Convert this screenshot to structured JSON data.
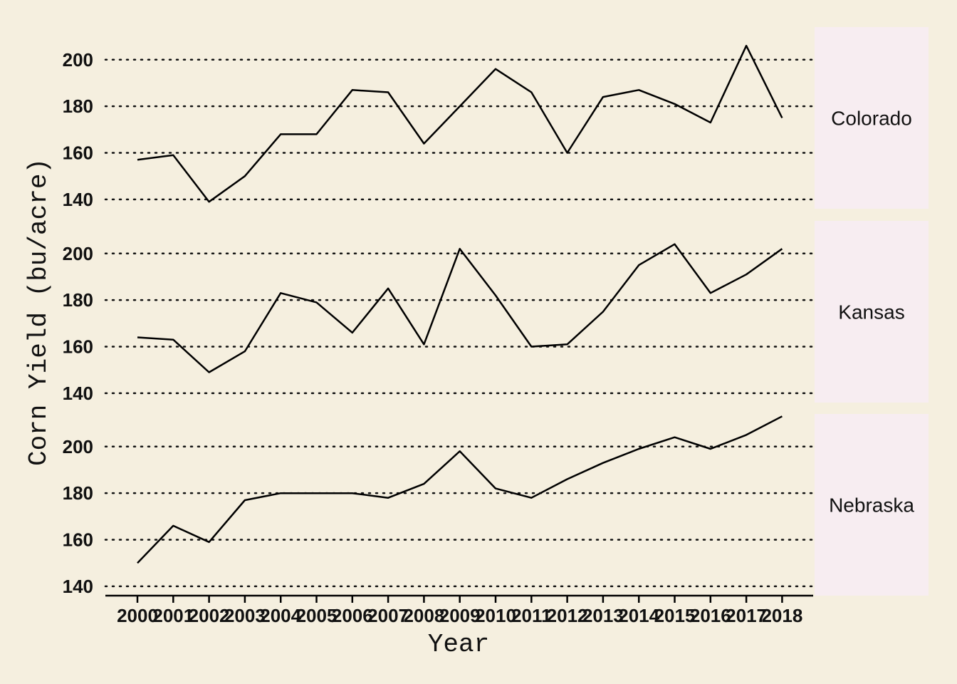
{
  "chart_data": {
    "type": "line",
    "xlabel": "Year",
    "ylabel": "Corn Yield (bu/acre)",
    "x": [
      "2000",
      "2001",
      "2002",
      "2003",
      "2004",
      "2005",
      "2006",
      "2007",
      "2008",
      "2009",
      "2010",
      "2011",
      "2012",
      "2013",
      "2014",
      "2015",
      "2016",
      "2017",
      "2018"
    ],
    "ylim": [
      136,
      214
    ],
    "yticks": [
      140,
      160,
      180,
      200
    ],
    "grid": "horizontal dotted",
    "facets": [
      {
        "name": "Colorado",
        "values": [
          157,
          159,
          139,
          150,
          168,
          168,
          187,
          186,
          164,
          180,
          196,
          186,
          160,
          184,
          187,
          181,
          173,
          206,
          175
        ]
      },
      {
        "name": "Kansas",
        "values": [
          164,
          163,
          149,
          158,
          183,
          179,
          166,
          185,
          161,
          202,
          182,
          160,
          161,
          175,
          195,
          204,
          183,
          191,
          202
        ]
      },
      {
        "name": "Nebraska",
        "values": [
          150,
          166,
          159,
          177,
          180,
          180,
          180,
          178,
          184,
          198,
          182,
          178,
          186,
          193,
          199,
          204,
          199,
          205,
          213
        ]
      }
    ],
    "colors": {
      "background": "#f5efdf",
      "strip": "#f7edf1",
      "line": "#000000"
    }
  }
}
